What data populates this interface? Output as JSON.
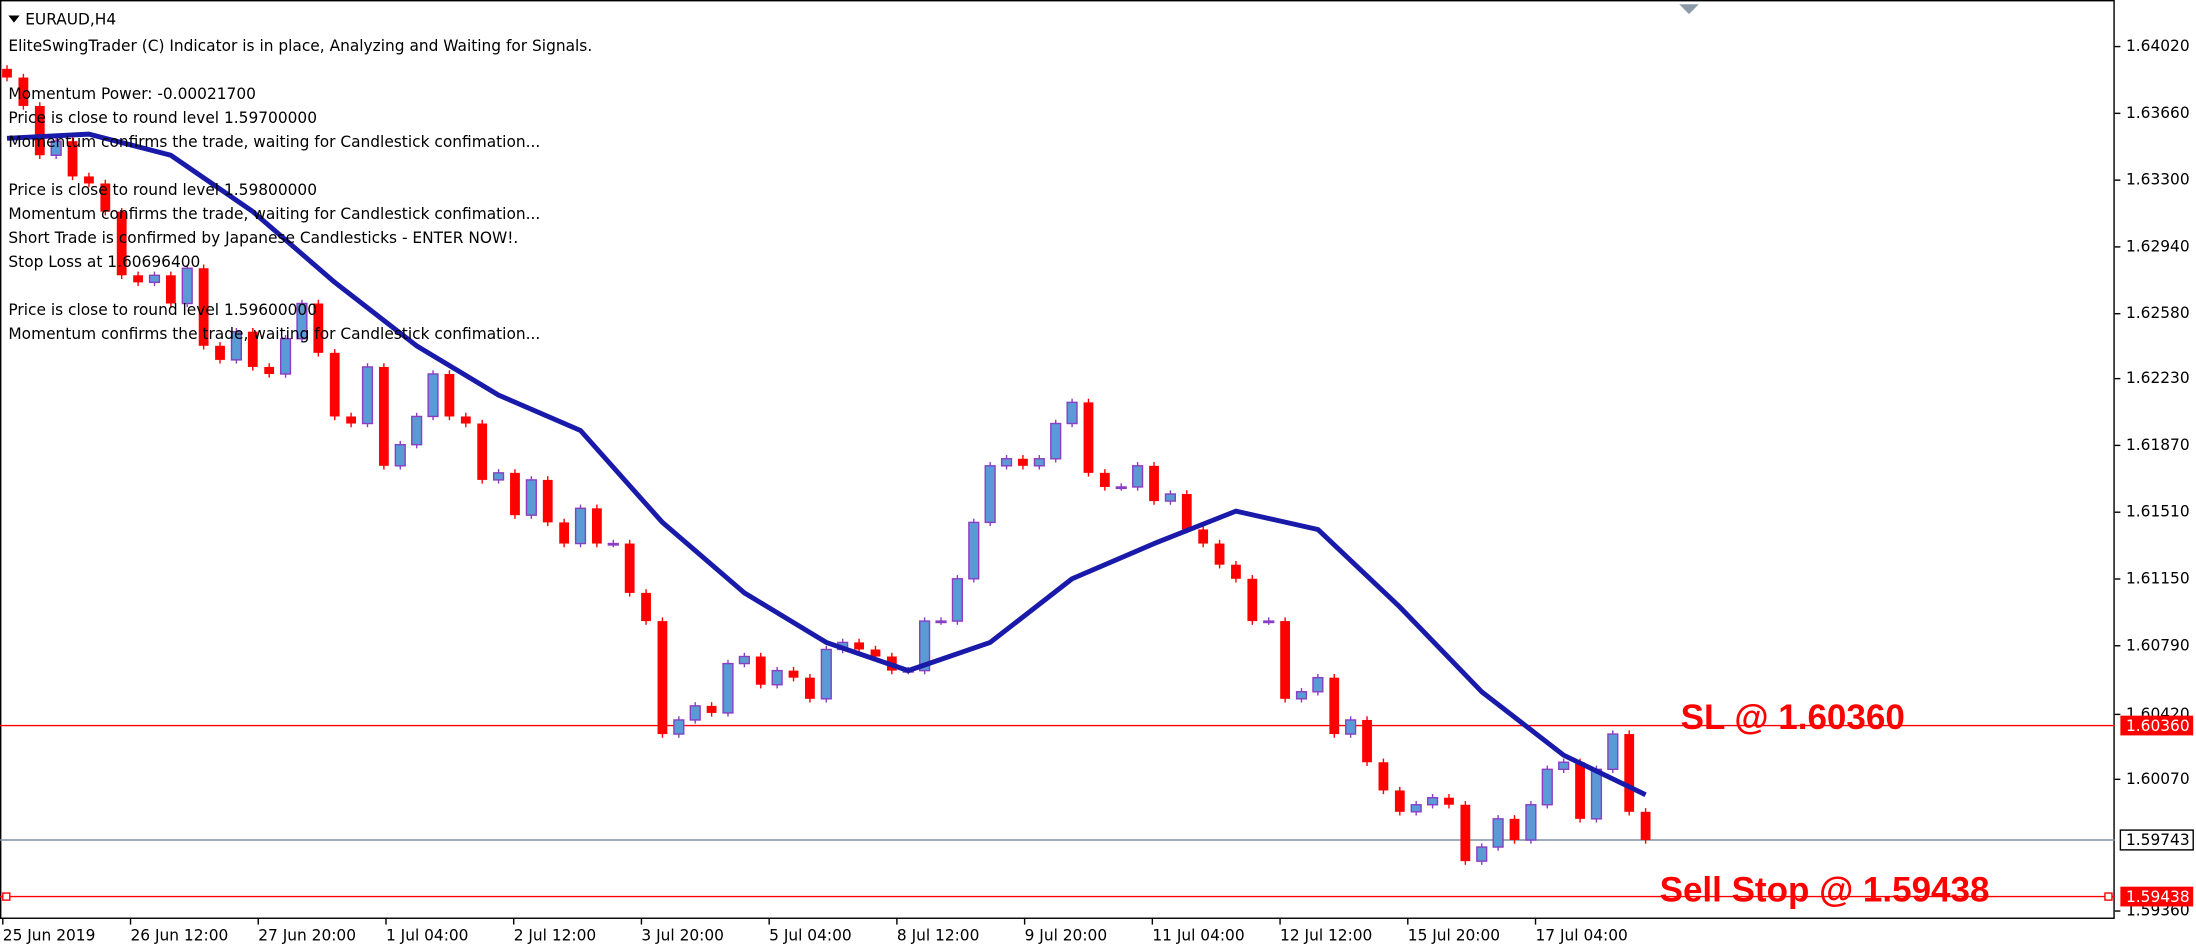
{
  "chart_data": {
    "type": "candlestick",
    "symbol": "EURAUD,H4",
    "info_groups": [
      [
        "EliteSwingTrader (C) Indicator is in place, Analyzing and Waiting for Signals."
      ],
      [
        "Momentum Power: -0.00021700",
        "Price is close to round level 1.59700000",
        "Momentum confirms the trade, waiting for Candlestick confimation..."
      ],
      [
        "Price is close to round level 1.59800000",
        "Momentum confirms the trade, waiting for Candlestick confimation...",
        "Short Trade is confirmed by Japanese Candlesticks - ENTER NOW!.",
        "Stop Loss at 1.60696400"
      ],
      [
        "Price is close to round level 1.59600000",
        "Momentum confirms the trade, waiting for Candlestick confimation..."
      ]
    ],
    "x_labels": [
      "25 Jun 2019",
      "26 Jun 12:00",
      "27 Jun 20:00",
      "1 Jul 04:00",
      "2 Jul 12:00",
      "3 Jul 20:00",
      "5 Jul 04:00",
      "8 Jul 12:00",
      "9 Jul 20:00",
      "11 Jul 04:00",
      "12 Jul 12:00",
      "15 Jul 20:00",
      "17 Jul 04:00"
    ],
    "ylim": [
      1.59325,
      1.64271
    ],
    "yticks": [
      {
        "value": 1.6402,
        "label": "1.64020"
      },
      {
        "value": 1.6366,
        "label": "1.63660"
      },
      {
        "value": 1.633,
        "label": "1.63300"
      },
      {
        "value": 1.6294,
        "label": "1.62940"
      },
      {
        "value": 1.6258,
        "label": "1.62580"
      },
      {
        "value": 1.6223,
        "label": "1.62230"
      },
      {
        "value": 1.6187,
        "label": "1.61870"
      },
      {
        "value": 1.6151,
        "label": "1.61510"
      },
      {
        "value": 1.6115,
        "label": "1.61150"
      },
      {
        "value": 1.6079,
        "label": "1.60790"
      },
      {
        "value": 1.6042,
        "label": "1.60420"
      },
      {
        "value": 1.6007,
        "label": "1.60070"
      },
      {
        "value": 1.5936,
        "label": "1.59360"
      }
    ],
    "bull_color": "#5b9bd5",
    "bull_border": "#8a3fc2",
    "bear_color": "#ff0000",
    "candles": {
      "open": [
        1.639,
        1.63853,
        1.637,
        1.63434,
        1.6351,
        1.6332,
        1.63282,
        1.6313,
        1.62787,
        1.62749,
        1.62787,
        1.62635,
        1.62825,
        1.62407,
        1.62331,
        1.62483,
        1.62293,
        1.62255,
        1.62445,
        1.62635,
        1.62369,
        1.62026,
        1.61988,
        1.62293,
        1.6176,
        1.61874,
        1.62026,
        1.62255,
        1.62026,
        1.61988,
        1.61684,
        1.61722,
        1.61494,
        1.61684,
        1.61455,
        1.61341,
        1.61531,
        1.61341,
        1.61341,
        1.61075,
        1.60923,
        1.60314,
        1.6039,
        1.60466,
        1.60428,
        1.60694,
        1.60732,
        1.6058,
        1.60656,
        1.60618,
        1.60504,
        1.6077,
        1.60808,
        1.6077,
        1.60732,
        1.60656,
        1.60656,
        1.60923,
        1.60923,
        1.61151,
        1.61455,
        1.6176,
        1.61798,
        1.6176,
        1.61798,
        1.61988,
        1.62102,
        1.61722,
        1.61646,
        1.61646,
        1.6176,
        1.6157,
        1.61608,
        1.61417,
        1.61341,
        1.61227,
        1.61151,
        1.60923,
        1.60923,
        1.60504,
        1.60542,
        1.60618,
        1.60314,
        1.6039,
        1.60162,
        1.6001,
        1.59895,
        1.59933,
        1.59971,
        1.59933,
        1.59629,
        1.59705,
        1.59857,
        1.59743,
        1.59933,
        1.60124,
        1.60162,
        1.59857,
        1.60124,
        1.60314,
        1.59895
      ],
      "high": [
        1.6392,
        1.63873,
        1.6372,
        1.6353,
        1.6353,
        1.6334,
        1.63302,
        1.6315,
        1.62807,
        1.62807,
        1.62807,
        1.62845,
        1.62845,
        1.62427,
        1.62503,
        1.62503,
        1.62313,
        1.62465,
        1.62655,
        1.62655,
        1.62389,
        1.62046,
        1.62313,
        1.62313,
        1.61894,
        1.62046,
        1.62275,
        1.62275,
        1.62046,
        1.62008,
        1.61742,
        1.61742,
        1.61704,
        1.61704,
        1.61475,
        1.61551,
        1.61551,
        1.61361,
        1.61361,
        1.61095,
        1.60943,
        1.6041,
        1.60486,
        1.60486,
        1.60714,
        1.60752,
        1.60752,
        1.60676,
        1.60676,
        1.60638,
        1.6079,
        1.60828,
        1.60828,
        1.6079,
        1.60752,
        1.60676,
        1.60943,
        1.60943,
        1.61171,
        1.61475,
        1.6178,
        1.61818,
        1.61818,
        1.61818,
        1.62008,
        1.62122,
        1.62122,
        1.61742,
        1.61666,
        1.6178,
        1.6178,
        1.61628,
        1.61628,
        1.61437,
        1.61361,
        1.61247,
        1.61171,
        1.60943,
        1.60943,
        1.60562,
        1.60638,
        1.60638,
        1.6041,
        1.6041,
        1.60182,
        1.6003,
        1.59953,
        1.59991,
        1.59991,
        1.59953,
        1.59725,
        1.59877,
        1.59877,
        1.59953,
        1.60144,
        1.60182,
        1.60182,
        1.60144,
        1.60334,
        1.60334,
        1.59915
      ],
      "low": [
        1.63833,
        1.6368,
        1.63414,
        1.63414,
        1.633,
        1.63262,
        1.6311,
        1.62767,
        1.62729,
        1.62729,
        1.62615,
        1.62615,
        1.62387,
        1.62311,
        1.62311,
        1.62273,
        1.62235,
        1.62235,
        1.62425,
        1.62349,
        1.62006,
        1.61968,
        1.61968,
        1.6174,
        1.6174,
        1.61854,
        1.62006,
        1.62006,
        1.61968,
        1.61664,
        1.61664,
        1.61474,
        1.61474,
        1.61435,
        1.61321,
        1.61321,
        1.61321,
        1.61321,
        1.61055,
        1.60903,
        1.60294,
        1.60294,
        1.6037,
        1.60408,
        1.60408,
        1.60674,
        1.6056,
        1.6056,
        1.60598,
        1.60484,
        1.60484,
        1.6075,
        1.6075,
        1.60712,
        1.60636,
        1.60636,
        1.60636,
        1.60903,
        1.60903,
        1.61131,
        1.61435,
        1.6174,
        1.6174,
        1.6174,
        1.61778,
        1.61968,
        1.61702,
        1.61626,
        1.61626,
        1.61626,
        1.6155,
        1.6155,
        1.61397,
        1.61321,
        1.61207,
        1.61131,
        1.60903,
        1.60903,
        1.60484,
        1.60484,
        1.60522,
        1.60294,
        1.60294,
        1.60142,
        1.5999,
        1.59875,
        1.59875,
        1.59913,
        1.59913,
        1.59609,
        1.59609,
        1.59685,
        1.59723,
        1.59723,
        1.59913,
        1.60104,
        1.59837,
        1.59837,
        1.60104,
        1.59875,
        1.59723
      ],
      "close": [
        1.63853,
        1.637,
        1.63434,
        1.6351,
        1.6332,
        1.63282,
        1.6313,
        1.62787,
        1.62749,
        1.62787,
        1.62635,
        1.62825,
        1.62407,
        1.62331,
        1.62483,
        1.62293,
        1.62255,
        1.62445,
        1.62635,
        1.62369,
        1.62026,
        1.61988,
        1.62293,
        1.6176,
        1.61874,
        1.62026,
        1.62255,
        1.62026,
        1.61988,
        1.61684,
        1.61722,
        1.61494,
        1.61684,
        1.61455,
        1.61341,
        1.61531,
        1.61341,
        1.61341,
        1.61075,
        1.60923,
        1.60314,
        1.6039,
        1.60466,
        1.60428,
        1.60694,
        1.60732,
        1.6058,
        1.60656,
        1.60618,
        1.60504,
        1.6077,
        1.60808,
        1.6077,
        1.60732,
        1.60656,
        1.60656,
        1.60923,
        1.60923,
        1.61151,
        1.61455,
        1.6176,
        1.61798,
        1.6176,
        1.61798,
        1.61988,
        1.62102,
        1.61722,
        1.61646,
        1.61646,
        1.6176,
        1.6157,
        1.61608,
        1.61417,
        1.61341,
        1.61227,
        1.61151,
        1.60923,
        1.60923,
        1.60504,
        1.60542,
        1.60618,
        1.60314,
        1.6039,
        1.60162,
        1.6001,
        1.59895,
        1.59933,
        1.59971,
        1.59933,
        1.59629,
        1.59705,
        1.59857,
        1.59743,
        1.59933,
        1.60124,
        1.60162,
        1.59857,
        1.60124,
        1.60314,
        1.59895,
        1.59743
      ]
    },
    "moving_average": {
      "color": "#1a1aaa",
      "x": [
        0,
        5,
        10,
        15,
        20,
        25,
        30,
        35,
        40,
        45,
        50,
        55,
        60,
        65,
        70,
        75,
        80,
        85,
        90,
        95,
        100
      ],
      "values": [
        1.63525,
        1.63548,
        1.63434,
        1.6313,
        1.62749,
        1.62407,
        1.62141,
        1.6195,
        1.61455,
        1.61075,
        1.60808,
        1.60656,
        1.60808,
        1.61151,
        1.61341,
        1.61516,
        1.61417,
        1.60999,
        1.60542,
        1.602,
        1.59987
      ]
    },
    "levels": [
      {
        "name": "SL @ 1.60360",
        "value": 1.6036,
        "value_label": "1.60360",
        "color": "#ff0000"
      },
      {
        "value": 1.59743,
        "value_label": "1.59743",
        "color": "#7f8fa0"
      },
      {
        "name": "Sell Stop @ 1.59438",
        "value": 1.59438,
        "value_label": "1.59438",
        "color": "#ff0000"
      }
    ]
  }
}
